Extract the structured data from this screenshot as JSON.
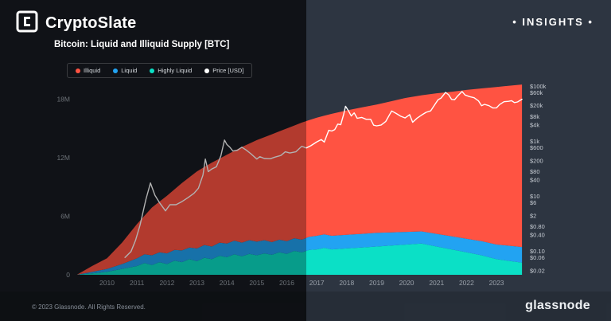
{
  "header": {
    "brand": "CryptoSlate",
    "badge": "• INSIGHTS •"
  },
  "title": "Bitcoin: Liquid and Illiquid Supply [BTC]",
  "legend": [
    {
      "label": "Illiquid",
      "color": "#ff5342"
    },
    {
      "label": "Liquid",
      "color": "#22a3f2"
    },
    {
      "label": "Highly Liquid",
      "color": "#0be0c6"
    },
    {
      "label": "Price [USD]",
      "color": "#ffffff"
    }
  ],
  "footer": {
    "copyright": "© 2023 Glassnode. All Rights Reserved.",
    "brand": "glassnode"
  },
  "colors": {
    "bg_left": "#171b21",
    "bg_right": "#2d3541",
    "illiquid": "#ff5342",
    "liquid": "#22a3f2",
    "highly_liquid": "#0be0c6",
    "price": "#ffffff"
  },
  "chart_data": {
    "type": "area",
    "stacked": true,
    "title": "Bitcoin: Liquid and Illiquid Supply [BTC]",
    "x_domain": [
      2008.95,
      2023.9
    ],
    "x_ticks": [
      2010,
      2011,
      2012,
      2013,
      2014,
      2015,
      2016,
      2017,
      2018,
      2019,
      2020,
      2021,
      2022,
      2023
    ],
    "x": [
      2009,
      2009.5,
      2010,
      2010.5,
      2011,
      2011.25,
      2011.5,
      2011.75,
      2012,
      2012.25,
      2012.5,
      2012.75,
      2013,
      2013.25,
      2013.5,
      2013.75,
      2014,
      2014.25,
      2014.5,
      2014.75,
      2015,
      2015.25,
      2015.5,
      2015.75,
      2016,
      2016.25,
      2016.5,
      2016.75,
      2017,
      2017.25,
      2017.5,
      2018,
      2018.5,
      2019,
      2019.5,
      2020,
      2020.5,
      2021,
      2021.5,
      2022,
      2022.5,
      2023,
      2023.85
    ],
    "series": [
      {
        "name": "Highly Liquid",
        "color": "#0be0c6",
        "values": [
          0.005,
          0.15,
          0.3,
          0.6,
          0.9,
          1.2,
          1.0,
          1.3,
          1.1,
          1.45,
          1.3,
          1.6,
          1.4,
          1.75,
          1.6,
          1.95,
          1.8,
          2.1,
          1.9,
          2.15,
          2.0,
          2.2,
          2.05,
          2.3,
          2.15,
          2.45,
          2.3,
          2.55,
          2.6,
          2.75,
          2.6,
          2.7,
          2.8,
          2.9,
          3.0,
          3.1,
          3.2,
          2.9,
          2.6,
          2.3,
          2.0,
          1.6,
          1.25
        ]
      },
      {
        "name": "Liquid",
        "color": "#22a3f2",
        "values": [
          0.005,
          0.15,
          0.3,
          0.5,
          0.8,
          0.9,
          1.0,
          1.0,
          1.1,
          1.1,
          1.2,
          1.2,
          1.3,
          1.3,
          1.3,
          1.35,
          1.4,
          1.4,
          1.4,
          1.4,
          1.4,
          1.35,
          1.3,
          1.3,
          1.3,
          1.3,
          1.3,
          1.35,
          1.4,
          1.4,
          1.4,
          1.4,
          1.4,
          1.4,
          1.35,
          1.3,
          1.25,
          1.3,
          1.35,
          1.4,
          1.45,
          1.5,
          1.6
        ]
      },
      {
        "name": "Illiquid",
        "color": "#ff5342",
        "values": [
          0.01,
          0.6,
          1.1,
          2.2,
          3.5,
          3.95,
          4.9,
          5.2,
          5.9,
          6.2,
          6.9,
          7.2,
          7.9,
          8.0,
          8.6,
          8.6,
          9.1,
          9.2,
          9.8,
          9.9,
          10.4,
          10.55,
          11.05,
          11.1,
          11.55,
          11.55,
          12.0,
          11.95,
          12.1,
          12.15,
          12.5,
          12.75,
          12.95,
          13.15,
          13.45,
          13.75,
          13.95,
          14.4,
          14.8,
          15.25,
          15.65,
          16.15,
          16.65
        ]
      }
    ],
    "price_series": {
      "name": "Price [USD]",
      "color": "#ffffff",
      "scale": "log",
      "points": [
        [
          2010.6,
          0.06
        ],
        [
          2010.8,
          0.1
        ],
        [
          2010.95,
          0.25
        ],
        [
          2011.1,
          0.9
        ],
        [
          2011.3,
          8
        ],
        [
          2011.45,
          31
        ],
        [
          2011.6,
          11
        ],
        [
          2011.75,
          6
        ],
        [
          2011.95,
          3
        ],
        [
          2012.1,
          5
        ],
        [
          2012.3,
          5
        ],
        [
          2012.5,
          6.5
        ],
        [
          2012.7,
          9
        ],
        [
          2012.9,
          13
        ],
        [
          2013.05,
          20
        ],
        [
          2013.2,
          60
        ],
        [
          2013.28,
          230
        ],
        [
          2013.38,
          80
        ],
        [
          2013.5,
          100
        ],
        [
          2013.65,
          120
        ],
        [
          2013.8,
          300
        ],
        [
          2013.92,
          1130
        ],
        [
          2014.0,
          780
        ],
        [
          2014.1,
          620
        ],
        [
          2014.2,
          450
        ],
        [
          2014.35,
          480
        ],
        [
          2014.5,
          620
        ],
        [
          2014.65,
          480
        ],
        [
          2014.8,
          360
        ],
        [
          2015.0,
          230
        ],
        [
          2015.1,
          280
        ],
        [
          2015.25,
          240
        ],
        [
          2015.45,
          235
        ],
        [
          2015.6,
          270
        ],
        [
          2015.8,
          310
        ],
        [
          2015.95,
          420
        ],
        [
          2016.1,
          380
        ],
        [
          2016.3,
          420
        ],
        [
          2016.5,
          670
        ],
        [
          2016.65,
          580
        ],
        [
          2016.8,
          700
        ],
        [
          2017.0,
          970
        ],
        [
          2017.15,
          1180
        ],
        [
          2017.25,
          950
        ],
        [
          2017.4,
          2550
        ],
        [
          2017.5,
          2400
        ],
        [
          2017.6,
          2700
        ],
        [
          2017.7,
          4300
        ],
        [
          2017.8,
          4100
        ],
        [
          2017.9,
          9800
        ],
        [
          2017.96,
          19200
        ],
        [
          2018.05,
          13500
        ],
        [
          2018.15,
          8500
        ],
        [
          2018.25,
          11000
        ],
        [
          2018.35,
          7000
        ],
        [
          2018.5,
          7500
        ],
        [
          2018.65,
          6400
        ],
        [
          2018.8,
          6400
        ],
        [
          2018.9,
          3900
        ],
        [
          2019.0,
          3700
        ],
        [
          2019.15,
          4000
        ],
        [
          2019.3,
          5300
        ],
        [
          2019.5,
          12900
        ],
        [
          2019.65,
          10500
        ],
        [
          2019.8,
          8300
        ],
        [
          2019.95,
          7200
        ],
        [
          2020.1,
          9500
        ],
        [
          2020.2,
          5000
        ],
        [
          2020.35,
          7100
        ],
        [
          2020.5,
          9200
        ],
        [
          2020.65,
          11500
        ],
        [
          2020.8,
          13000
        ],
        [
          2020.95,
          23000
        ],
        [
          2021.05,
          33000
        ],
        [
          2021.15,
          38000
        ],
        [
          2021.3,
          61000
        ],
        [
          2021.4,
          50000
        ],
        [
          2021.5,
          34000
        ],
        [
          2021.6,
          33000
        ],
        [
          2021.7,
          45000
        ],
        [
          2021.85,
          66000
        ],
        [
          2021.95,
          49000
        ],
        [
          2022.1,
          43000
        ],
        [
          2022.25,
          39000
        ],
        [
          2022.4,
          30000
        ],
        [
          2022.5,
          20000
        ],
        [
          2022.6,
          22500
        ],
        [
          2022.75,
          20000
        ],
        [
          2022.88,
          16500
        ],
        [
          2023.0,
          16800
        ],
        [
          2023.1,
          22000
        ],
        [
          2023.25,
          28000
        ],
        [
          2023.4,
          29000
        ],
        [
          2023.5,
          30500
        ],
        [
          2023.6,
          26000
        ],
        [
          2023.7,
          27500
        ],
        [
          2023.85,
          34500
        ]
      ]
    },
    "left_axis": {
      "unit": "BTC",
      "max": 20,
      "ticks": [
        "0",
        "6M",
        "12M",
        "18M"
      ],
      "tick_values": [
        0,
        6,
        12,
        18
      ]
    },
    "right_axis": {
      "unit": "USD",
      "scale": "log",
      "log_domain": [
        -1.85,
        5.25
      ],
      "ticks": [
        "$100k",
        "$60k",
        "$20k",
        "$8k",
        "$4k",
        "$1k",
        "$600",
        "$200",
        "$80",
        "$40",
        "$10",
        "$6",
        "$2",
        "$0.80",
        "$0.40",
        "$0.10",
        "$0.06",
        "$0.02"
      ],
      "tick_values": [
        100000,
        60000,
        20000,
        8000,
        4000,
        1000,
        600,
        200,
        80,
        40,
        10,
        6,
        2,
        0.8,
        0.4,
        0.1,
        0.06,
        0.02
      ]
    },
    "legend_position": "top-left",
    "grid": false
  }
}
